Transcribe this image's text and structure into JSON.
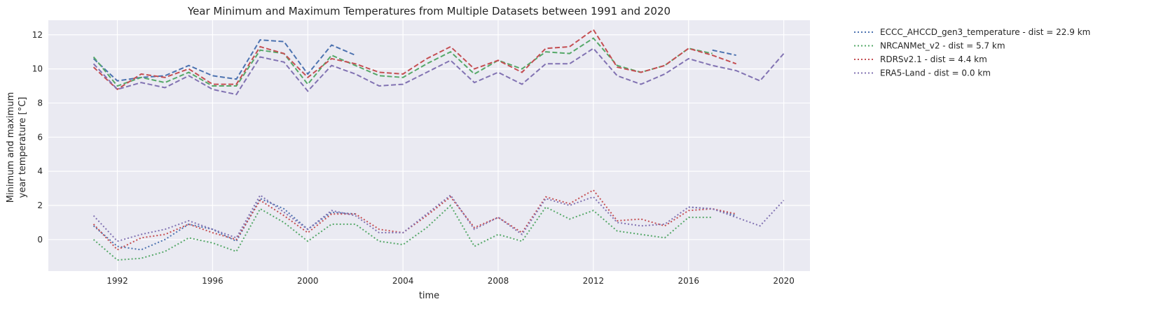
{
  "chart_data": {
    "type": "line",
    "title": "Year Minimum and Maximum Temperatures from Multiple Datasets between 1991 and 2020",
    "xlabel": "time",
    "ylabel_line1": "Minimum and maximum",
    "ylabel_line2": "year temperature [°C]",
    "xlim": [
      1989.1,
      2021.1
    ],
    "ylim": [
      -1.85,
      12.85
    ],
    "xticks": [
      1992,
      1996,
      2000,
      2004,
      2008,
      2012,
      2016,
      2020
    ],
    "xtick_labels": [
      "1992",
      "1996",
      "2000",
      "2004",
      "2008",
      "2012",
      "2016",
      "2020"
    ],
    "yticks": [
      0,
      2,
      4,
      6,
      8,
      10,
      12
    ],
    "ytick_labels": [
      "0",
      "2",
      "4",
      "6",
      "8",
      "10",
      "12"
    ],
    "grid": true,
    "background": "#eaeaf2",
    "legend_position": "outside-right",
    "series": [
      {
        "name": "ECCC_AHCCD_gen3_temperature - dist = 22.9 km",
        "color": "#4c72b0",
        "max": {
          "x": [
            1991,
            1992,
            1993,
            1994,
            1995,
            1996,
            1997,
            1998,
            1999,
            2000,
            2001,
            2002,
            null,
            2017,
            2018
          ],
          "y": [
            10.6,
            9.3,
            9.5,
            9.6,
            10.2,
            9.6,
            9.4,
            11.7,
            11.6,
            9.7,
            11.4,
            10.8,
            null,
            11.1,
            10.8
          ]
        },
        "min": {
          "x": [
            1991,
            1992,
            1993,
            1994,
            1995,
            1996,
            1997,
            1998,
            1999,
            2000,
            2001,
            2002,
            null,
            2016,
            2017,
            2018
          ],
          "y": [
            0.8,
            -0.4,
            -0.6,
            0.0,
            0.9,
            0.6,
            -0.1,
            2.4,
            1.8,
            0.6,
            1.6,
            1.5,
            null,
            1.9,
            1.8,
            1.4
          ]
        }
      },
      {
        "name": "NRCANMet_v2 - dist = 5.7 km",
        "color": "#55a868",
        "max": {
          "x": [
            1991,
            1992,
            1993,
            1994,
            1995,
            1996,
            1997,
            1998,
            1999,
            2000,
            2001,
            2002,
            2003,
            2004,
            2005,
            2006,
            2007,
            2008,
            2009,
            2010,
            2011,
            2012,
            2013,
            2014,
            2015,
            2016,
            2017
          ],
          "y": [
            10.7,
            9.0,
            9.5,
            9.2,
            9.8,
            9.0,
            9.0,
            11.1,
            10.9,
            9.1,
            10.8,
            10.2,
            9.6,
            9.5,
            10.3,
            11.0,
            9.7,
            10.5,
            10.0,
            11.0,
            10.9,
            11.8,
            10.2,
            9.8,
            10.2,
            11.2,
            10.9
          ]
        },
        "min": {
          "x": [
            1991,
            1992,
            1993,
            1994,
            1995,
            1996,
            1997,
            1998,
            1999,
            2000,
            2001,
            2002,
            2003,
            2004,
            2005,
            2006,
            2007,
            2008,
            2009,
            2010,
            2011,
            2012,
            2013,
            2014,
            2015,
            2016,
            2017
          ],
          "y": [
            0.0,
            -1.2,
            -1.1,
            -0.7,
            0.1,
            -0.2,
            -0.7,
            1.8,
            1.0,
            -0.1,
            0.9,
            0.9,
            -0.1,
            -0.3,
            0.7,
            2.0,
            -0.4,
            0.3,
            -0.1,
            1.9,
            1.2,
            1.7,
            0.5,
            0.3,
            0.1,
            1.3,
            1.3
          ]
        }
      },
      {
        "name": "RDRSv2.1 - dist = 4.4 km",
        "color": "#c44e52",
        "max": {
          "x": [
            1991,
            1992,
            1993,
            1994,
            1995,
            1996,
            1997,
            1998,
            1999,
            2000,
            2001,
            2002,
            2003,
            2004,
            2005,
            2006,
            2007,
            2008,
            2009,
            2010,
            2011,
            2012,
            2013,
            2014,
            2015,
            2016,
            2017,
            2018
          ],
          "y": [
            10.1,
            8.8,
            9.7,
            9.5,
            10.0,
            9.1,
            9.1,
            11.3,
            10.9,
            9.5,
            10.6,
            10.3,
            9.8,
            9.7,
            10.6,
            11.3,
            10.0,
            10.5,
            9.8,
            11.2,
            11.3,
            12.3,
            10.1,
            9.8,
            10.2,
            11.2,
            10.8,
            10.3
          ]
        },
        "min": {
          "x": [
            1991,
            1992,
            1993,
            1994,
            1995,
            1996,
            1997,
            1998,
            1999,
            2000,
            2001,
            2002,
            2003,
            2004,
            2005,
            2006,
            2007,
            2008,
            2009,
            2010,
            2011,
            2012,
            2013,
            2014,
            2015,
            2016,
            2017,
            2018
          ],
          "y": [
            0.9,
            -0.6,
            0.1,
            0.3,
            0.9,
            0.4,
            0.0,
            2.3,
            1.4,
            0.4,
            1.5,
            1.5,
            0.6,
            0.4,
            1.4,
            2.5,
            0.7,
            1.3,
            0.4,
            2.5,
            2.1,
            2.9,
            1.1,
            1.2,
            0.8,
            1.7,
            1.8,
            1.5
          ]
        }
      },
      {
        "name": "ERA5-Land - dist = 0.0 km",
        "color": "#8172b2",
        "max": {
          "x": [
            1991,
            1992,
            1993,
            1994,
            1995,
            1996,
            1997,
            1998,
            1999,
            2000,
            2001,
            2002,
            2003,
            2004,
            2005,
            2006,
            2007,
            2008,
            2009,
            2010,
            2011,
            2012,
            2013,
            2014,
            2015,
            2016,
            2017,
            2018,
            2019,
            2020
          ],
          "y": [
            10.3,
            8.8,
            9.2,
            8.9,
            9.6,
            8.8,
            8.5,
            10.7,
            10.4,
            8.7,
            10.2,
            9.7,
            9.0,
            9.1,
            9.8,
            10.5,
            9.2,
            9.8,
            9.1,
            10.3,
            10.3,
            11.2,
            9.6,
            9.1,
            9.7,
            10.6,
            10.2,
            9.9,
            9.3,
            10.9
          ]
        },
        "min": {
          "x": [
            1991,
            1992,
            1993,
            1994,
            1995,
            1996,
            1997,
            1998,
            1999,
            2000,
            2001,
            2002,
            2003,
            2004,
            2005,
            2006,
            2007,
            2008,
            2009,
            2010,
            2011,
            2012,
            2013,
            2014,
            2015,
            2016,
            2017,
            2018,
            2019,
            2020
          ],
          "y": [
            1.4,
            -0.1,
            0.3,
            0.6,
            1.1,
            0.6,
            0.1,
            2.6,
            1.6,
            0.6,
            1.7,
            1.4,
            0.4,
            0.4,
            1.5,
            2.6,
            0.6,
            1.3,
            0.3,
            2.4,
            2.0,
            2.5,
            1.0,
            0.8,
            0.9,
            1.9,
            1.8,
            1.3,
            0.8,
            2.3
          ]
        }
      }
    ]
  }
}
